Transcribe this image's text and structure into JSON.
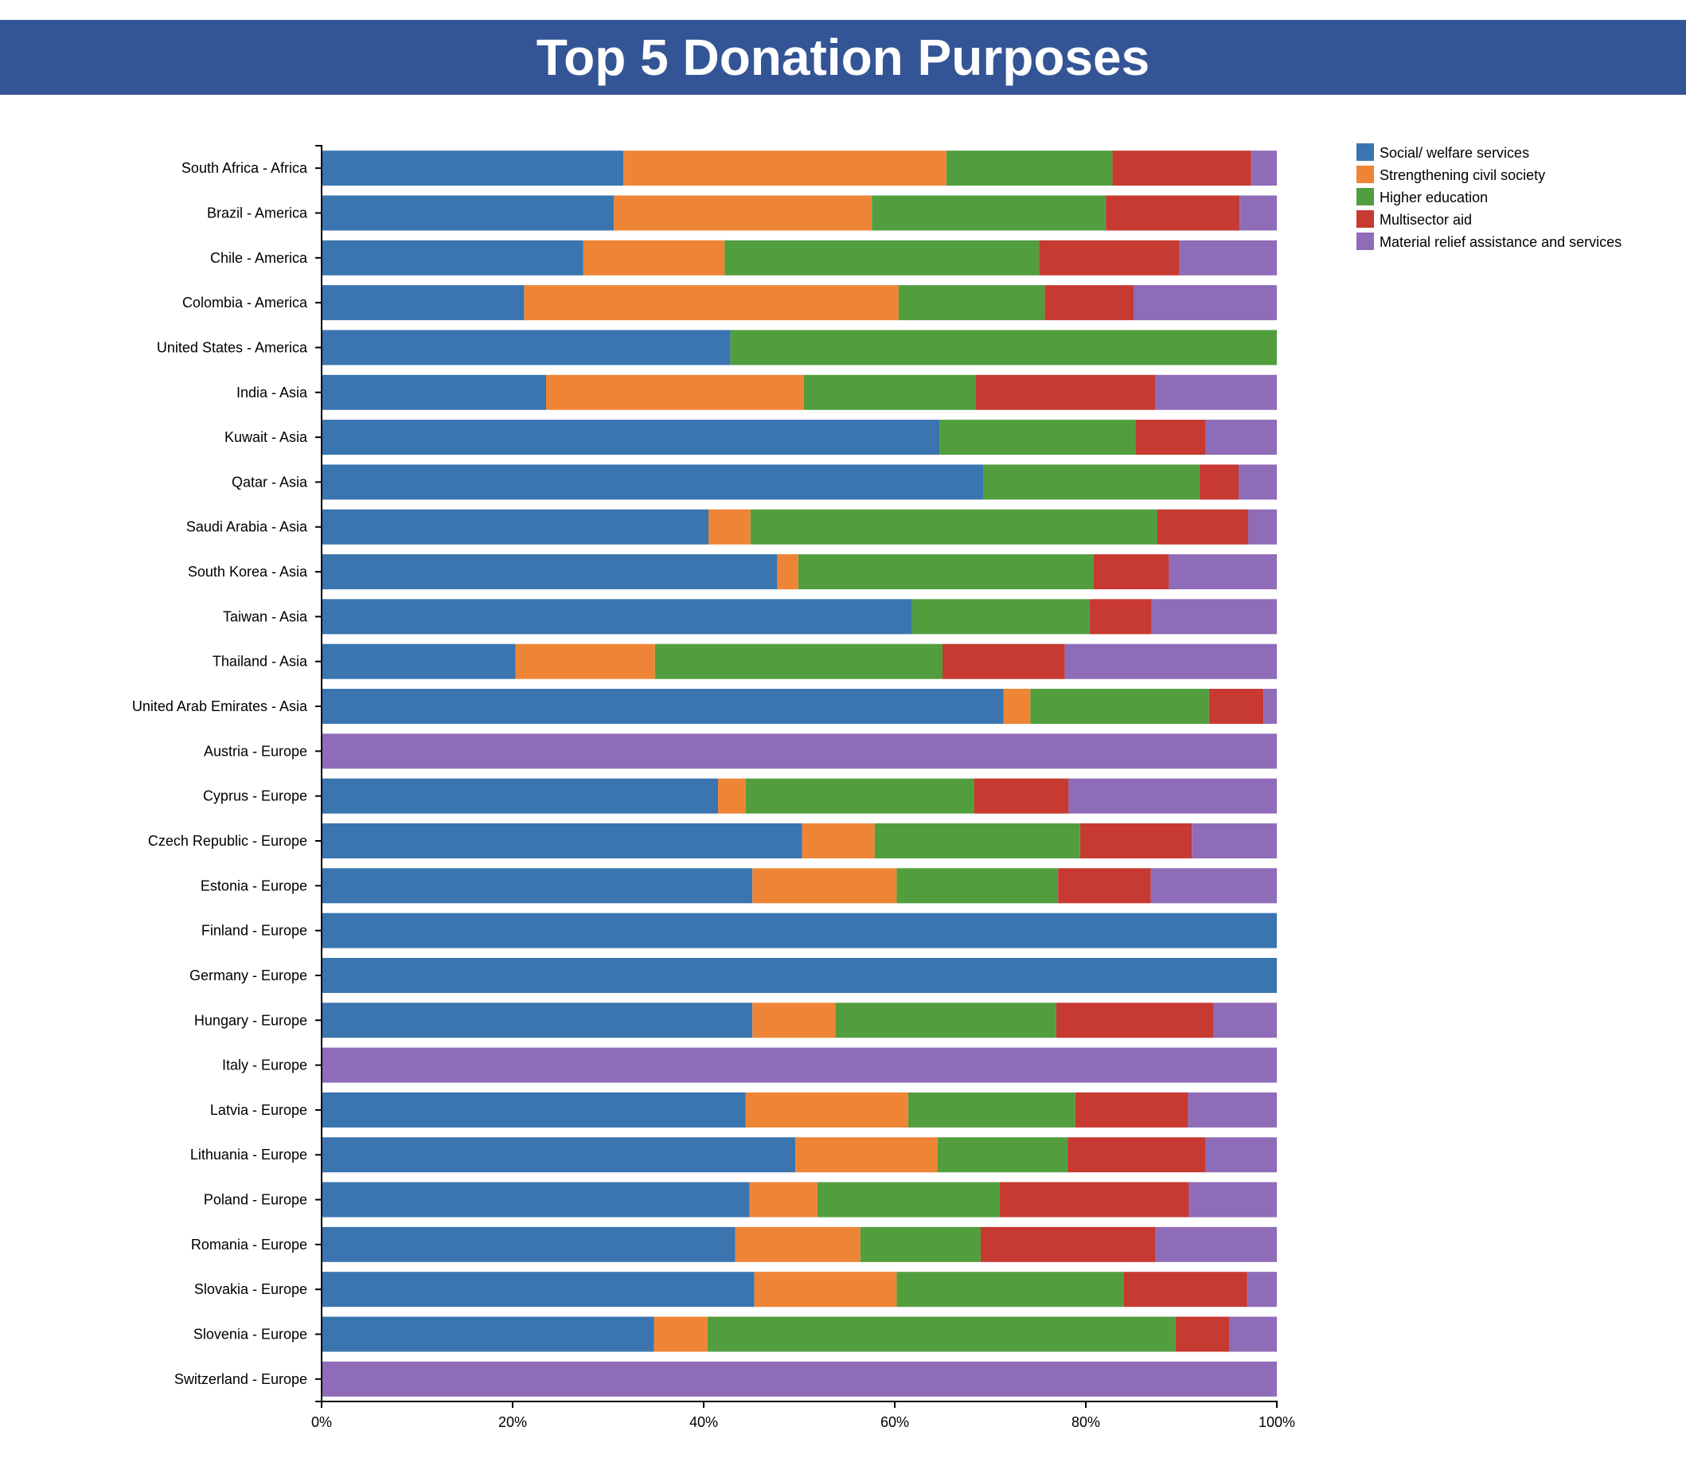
{
  "chart_data": {
    "type": "bar",
    "orientation": "horizontal",
    "stacked": "percent",
    "title": "Top 5 Donation Purposes",
    "xlabel": "",
    "ylabel": "",
    "xlim": [
      0,
      100
    ],
    "x_ticks": [
      "0%",
      "20%",
      "40%",
      "60%",
      "80%",
      "100%"
    ],
    "grid": false,
    "legend_position": "top-right",
    "categories": [
      "South Africa - Africa",
      "Brazil - America",
      "Chile - America",
      "Colombia - America",
      "United States - America",
      "India - Asia",
      "Kuwait - Asia",
      "Qatar - Asia",
      "Saudi Arabia - Asia",
      "South Korea - Asia",
      "Taiwan - Asia",
      "Thailand - Asia",
      "United Arab Emirates - Asia",
      "Austria - Europe",
      "Cyprus - Europe",
      "Czech Republic - Europe",
      "Estonia - Europe",
      "Finland - Europe",
      "Germany - Europe",
      "Hungary - Europe",
      "Italy - Europe",
      "Latvia - Europe",
      "Lithuania - Europe",
      "Poland - Europe",
      "Romania - Europe",
      "Slovakia - Europe",
      "Slovenia - Europe",
      "Switzerland - Europe"
    ],
    "series": [
      {
        "name": "Social/ welfare services",
        "color": "#3a75b0",
        "values": [
          31.6,
          30.6,
          27.4,
          21.2,
          42.8,
          23.5,
          64.7,
          69.3,
          40.5,
          47.7,
          61.8,
          20.3,
          71.4,
          0,
          41.5,
          50.3,
          45.1,
          100,
          100,
          45.1,
          0,
          44.4,
          49.6,
          44.8,
          43.3,
          45.3,
          34.8,
          0
        ]
      },
      {
        "name": "Strengthening civil society",
        "color": "#ee8536",
        "values": [
          33.8,
          27.0,
          14.8,
          39.2,
          0,
          27.0,
          0,
          0,
          4.4,
          2.2,
          0,
          14.6,
          2.8,
          0,
          2.9,
          7.6,
          15.1,
          0,
          0,
          8.7,
          0,
          17.0,
          14.9,
          7.1,
          13.1,
          14.9,
          5.6,
          0
        ]
      },
      {
        "name": "Higher education",
        "color": "#529e3f",
        "values": [
          17.4,
          24.5,
          32.9,
          15.3,
          57.2,
          18.0,
          20.5,
          22.6,
          42.6,
          30.9,
          18.6,
          30.1,
          18.7,
          0,
          23.9,
          21.5,
          16.9,
          0,
          0,
          23.1,
          0,
          17.5,
          13.6,
          19.1,
          12.6,
          23.8,
          49.0,
          0
        ]
      },
      {
        "name": "Multisector aid",
        "color": "#c73a32",
        "values": [
          14.5,
          14.0,
          14.7,
          9.3,
          0,
          18.8,
          7.3,
          4.1,
          9.5,
          7.9,
          6.5,
          12.8,
          5.7,
          0,
          9.9,
          11.7,
          9.7,
          0,
          0,
          16.5,
          0,
          11.8,
          14.4,
          19.8,
          18.3,
          12.9,
          5.6,
          0
        ]
      },
      {
        "name": "Material relief assistance and services",
        "color": "#8f6cb8",
        "values": [
          2.7,
          3.9,
          10.2,
          15.0,
          0,
          12.7,
          7.5,
          4.0,
          3.0,
          11.3,
          13.1,
          22.2,
          1.4,
          100,
          21.8,
          8.9,
          13.2,
          0,
          0,
          6.6,
          100,
          9.3,
          7.5,
          9.2,
          12.7,
          3.1,
          5.0,
          100
        ]
      }
    ]
  }
}
